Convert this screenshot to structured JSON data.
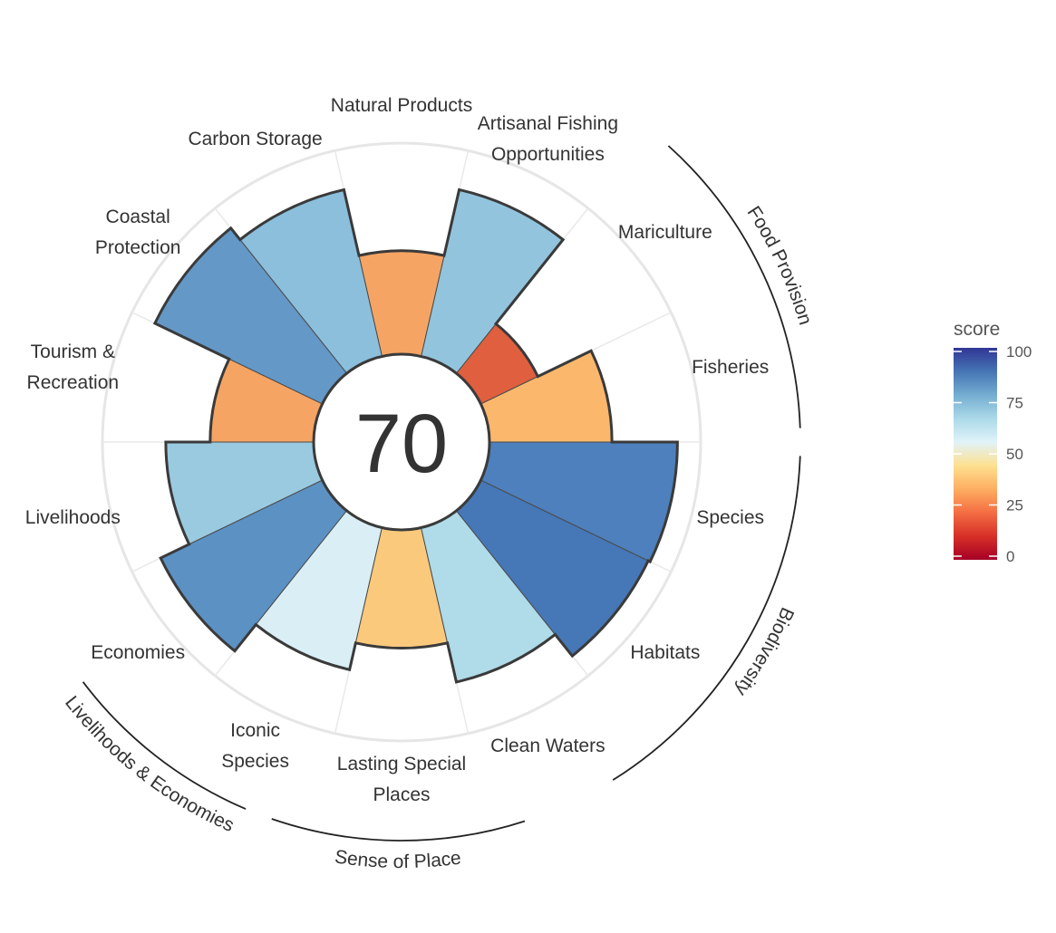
{
  "chart_data": {
    "type": "polar-bar",
    "overall_score": "70",
    "goals": [
      {
        "label": "Fisheries",
        "score": 58,
        "color": "#FBB86C"
      },
      {
        "label": "Mariculture",
        "score": 30,
        "color": "#DF5F3F"
      },
      {
        "label": "Artisanal Fishing Opportunities",
        "score": 81,
        "color": "#93C4DE"
      },
      {
        "label": "Natural Products",
        "score": 49,
        "color": "#F6A463"
      },
      {
        "label": "Carbon Storage",
        "score": 81,
        "color": "#8BBFDC"
      },
      {
        "label": "Coastal Protection",
        "score": 88,
        "color": "#6498C6"
      },
      {
        "label": "Tourism & Recreation",
        "score": 49,
        "color": "#F6A463"
      },
      {
        "label": "Livelihoods",
        "score": 70,
        "color": "#9ACAE0"
      },
      {
        "label": "Economies",
        "score": 85,
        "color": "#5C91C3"
      },
      {
        "label": "Iconic Species",
        "score": 69,
        "color": "#DAEEF5"
      },
      {
        "label": "Lasting Special Places",
        "score": 56,
        "color": "#FBC97C"
      },
      {
        "label": "Clean Waters",
        "score": 75,
        "color": "#B0DBE9"
      },
      {
        "label": "Habitats",
        "score": 88,
        "color": "#4677B6"
      },
      {
        "label": "Species",
        "score": 89,
        "color": "#4D80BC"
      }
    ],
    "groups": [
      {
        "label": "Food Provision"
      },
      {
        "label": "Biodiversity"
      },
      {
        "label": "Sense of Place"
      },
      {
        "label": "Livelihoods & Economies"
      }
    ],
    "legend": {
      "title": "score",
      "ticks": [
        "100",
        "75",
        "50",
        "25",
        "0"
      ],
      "colors": [
        "#313695",
        "#4575B4",
        "#74ADD1",
        "#ABD9E9",
        "#E0F3F8",
        "#FEE090",
        "#FDAE61",
        "#F46D43",
        "#D73027",
        "#A50026"
      ]
    },
    "ylim": [
      0,
      100
    ]
  }
}
